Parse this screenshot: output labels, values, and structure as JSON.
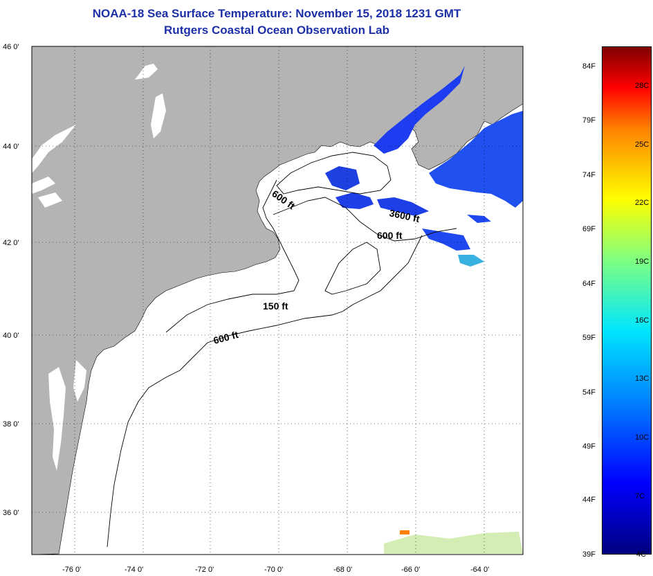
{
  "title": {
    "line1": "NOAA-18 Sea Surface Temperature:  November 15, 2018 1231 GMT",
    "line2": "Rutgers Coastal Ocean Observation Lab"
  },
  "axes": {
    "lat_labels": [
      "46 0'",
      "44 0'",
      "42 0'",
      "40 0'",
      "38 0'",
      "36 0'"
    ],
    "lon_labels": [
      "-76 0'",
      "-74 0'",
      "-72 0'",
      "-70 0'",
      "-68 0'",
      "-66 0'",
      "-64 0'"
    ]
  },
  "depth_labels": [
    "600 ft",
    "3600 ft",
    "600 ft",
    "150 ft",
    "600 ft"
  ],
  "colorbar": {
    "fahrenheit": [
      "84F",
      "79F",
      "74F",
      "69F",
      "64F",
      "59F",
      "54F",
      "49F",
      "44F",
      "39F"
    ],
    "celsius": [
      "28C",
      "25C",
      "22C",
      "19C",
      "16C",
      "13C",
      "10C",
      "7C",
      "4C"
    ]
  },
  "colors": {
    "land": "#b4b4b4",
    "title": "#1c2fa8",
    "cold_water": "#1e3cf0",
    "coastline": "#000000"
  }
}
